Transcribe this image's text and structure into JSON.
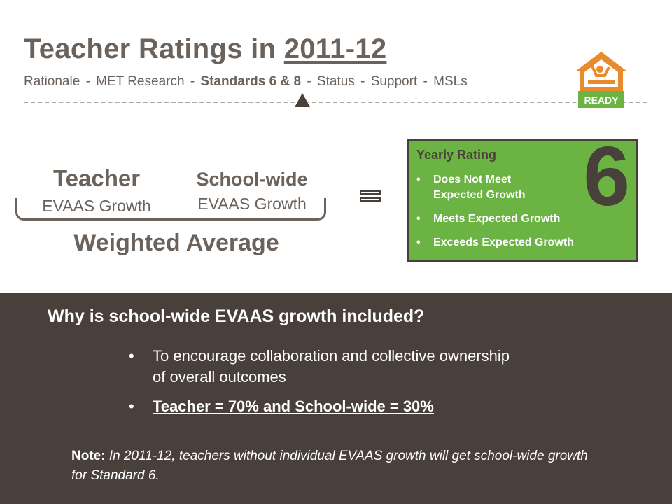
{
  "header": {
    "title_prefix": "Teacher Ratings in ",
    "title_year": "2011-12",
    "nav": [
      {
        "label": "Rationale",
        "active": false
      },
      {
        "label": "MET Research",
        "active": false
      },
      {
        "label": "Standards 6 & 8",
        "active": true
      },
      {
        "label": "Status",
        "active": false
      },
      {
        "label": "Support",
        "active": false
      },
      {
        "label": "MSLs",
        "active": false
      }
    ],
    "separator": "-",
    "logo_text": "READY"
  },
  "formula": {
    "teacher_title": "Teacher",
    "teacher_sub": "EVAAS Growth",
    "school_title": "School-wide",
    "school_sub": "EVAAS Growth",
    "combine_label": "Weighted Average"
  },
  "rating": {
    "title": "Yearly Rating",
    "standard_number": "6",
    "items": [
      "Does Not Meet Expected Growth",
      "Meets Expected Growth",
      "Exceeds Expected Growth"
    ]
  },
  "why": {
    "question": "Why is school-wide EVAAS growth included?",
    "reasons": [
      "To encourage collaboration and collective ownership of overall outcomes",
      "Teacher = 70% and School-wide = 30%"
    ],
    "note_label": "Note:",
    "note_body": "In 2011-12, teachers without individual EVAAS growth will get school-wide growth for Standard 6."
  },
  "colors": {
    "text_brown": "#6b625c",
    "dark_brown": "#4a403b",
    "green": "#6bb443",
    "logo_orange": "#e98a2c",
    "logo_green": "#6bb443"
  }
}
